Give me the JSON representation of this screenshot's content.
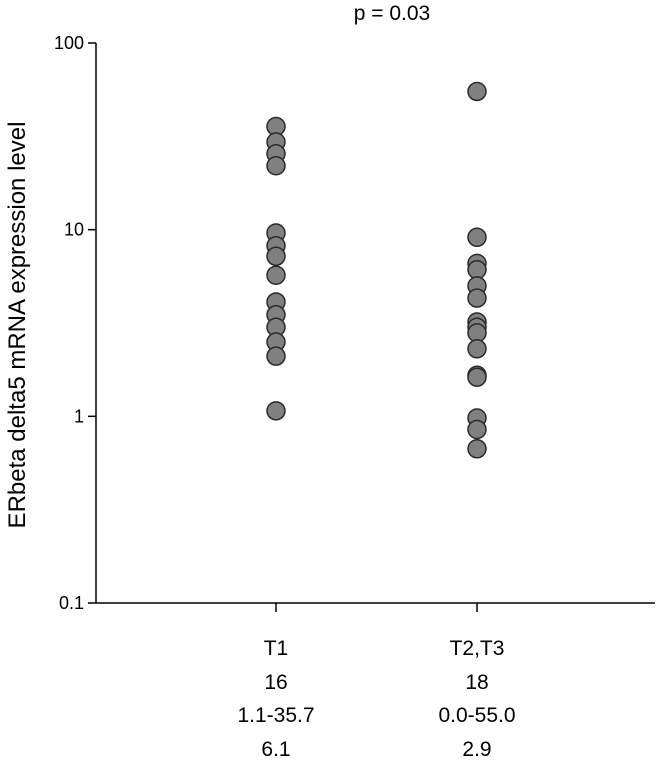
{
  "chart_data": {
    "type": "scatter",
    "title": "p = 0.03",
    "xlabel": "",
    "ylabel": "ERbeta delta5 mRNA expression level",
    "yscale": "log",
    "ylim": [
      0.1,
      100
    ],
    "yticks": [
      0.1,
      1,
      10,
      100
    ],
    "ytick_labels": [
      "0.1",
      "1",
      "10",
      "100"
    ],
    "grid": false,
    "categories": [
      {
        "label": "T1",
        "n": "16",
        "range": "1.1-35.7",
        "median": "6.1"
      },
      {
        "label": "T2,T3",
        "n": "18",
        "range": "0.0-55.0",
        "median": "2.9"
      }
    ],
    "series": [
      {
        "values": [
          35.7,
          29.5,
          25.5,
          22.0,
          9.6,
          8.2,
          7.2,
          5.7,
          4.1,
          3.5,
          3.0,
          2.5,
          2.1,
          1.07
        ]
      },
      {
        "values": [
          55.0,
          9.1,
          6.6,
          6.1,
          5.0,
          4.3,
          3.2,
          3.0,
          2.8,
          2.3,
          1.66,
          1.62,
          0.98,
          0.85,
          0.67
        ]
      }
    ]
  }
}
